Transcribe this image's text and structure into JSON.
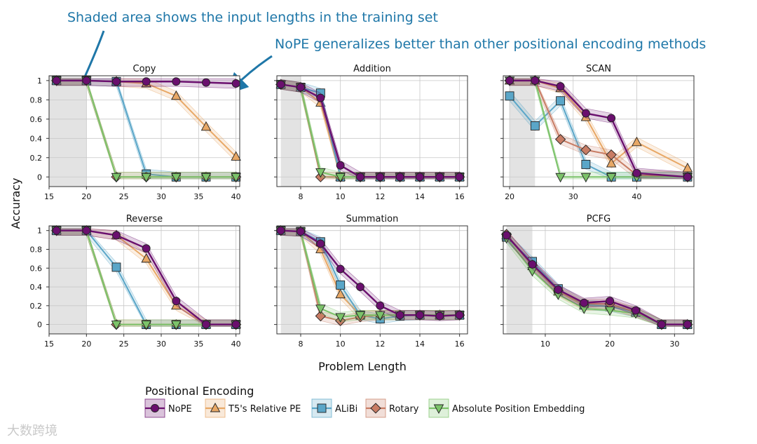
{
  "annotations": [
    "Shaded area shows the input lengths in the training set",
    "NoPE generalizes better than other positional encoding methods"
  ],
  "watermark": "大数跨境",
  "shared_xlabel": "Problem Length",
  "shared_ylabel": "Accuracy",
  "legend": {
    "title": "Positional Encoding",
    "entries": [
      {
        "label": "NoPE",
        "color": "#6a0f6e",
        "marker": "circle"
      },
      {
        "label": "T5's Relative PE",
        "color": "#e8a866",
        "marker": "triangle-up"
      },
      {
        "label": "ALiBi",
        "color": "#5aa6c8",
        "marker": "square"
      },
      {
        "label": "Rotary",
        "color": "#c87c64",
        "marker": "diamond"
      },
      {
        "label": "Absolute Position Embedding",
        "color": "#7cc36a",
        "marker": "triangle-down"
      }
    ]
  },
  "chart_data": [
    {
      "type": "line",
      "title": "Copy",
      "xlim": [
        15,
        40.5
      ],
      "xticks": [
        15,
        20,
        25,
        30,
        35,
        40
      ],
      "ylim": [
        -0.1,
        1.05
      ],
      "yticks": [
        0,
        0.2,
        0.4,
        0.6,
        0.8,
        1
      ],
      "ytick_labels": [
        "0",
        "0.2",
        "0.4",
        "0.6",
        "0.8",
        "1"
      ],
      "train_range": [
        15,
        20
      ],
      "series": [
        {
          "name": "NoPE",
          "x": [
            16,
            20,
            24,
            28,
            32,
            36,
            40
          ],
          "y": [
            1,
            1,
            0.99,
            0.99,
            0.99,
            0.98,
            0.97
          ]
        },
        {
          "name": "T5's Relative PE",
          "x": [
            16,
            20,
            24,
            28,
            32,
            36,
            40
          ],
          "y": [
            1,
            1,
            0.99,
            0.97,
            0.84,
            0.52,
            0.21
          ]
        },
        {
          "name": "ALiBi",
          "x": [
            16,
            20,
            24,
            28,
            32,
            36,
            40
          ],
          "y": [
            1,
            1,
            0.99,
            0.03,
            0,
            0,
            0
          ]
        },
        {
          "name": "Rotary",
          "x": [
            16,
            20,
            24,
            28,
            32,
            36,
            40
          ],
          "y": [
            1,
            1,
            0,
            0,
            0,
            0,
            0
          ]
        },
        {
          "name": "Absolute Position Embedding",
          "x": [
            16,
            20,
            24,
            28,
            32,
            36,
            40
          ],
          "y": [
            1,
            1,
            0,
            0,
            0,
            0,
            0
          ]
        }
      ]
    },
    {
      "type": "line",
      "title": "Addition",
      "xlim": [
        6.8,
        16.4
      ],
      "xticks": [
        8,
        10,
        12,
        14,
        16
      ],
      "ylim": [
        -0.1,
        1.05
      ],
      "yticks": [
        0,
        0.2,
        0.4,
        0.6,
        0.8,
        1
      ],
      "ytick_labels": [
        "",
        "",
        "",
        "",
        "",
        ""
      ],
      "train_range": [
        7,
        8
      ],
      "series": [
        {
          "name": "NoPE",
          "x": [
            7,
            8,
            9,
            10,
            11,
            12,
            13,
            14,
            15,
            16
          ],
          "y": [
            0.96,
            0.93,
            0.82,
            0.12,
            0,
            0,
            0,
            0,
            0,
            0
          ]
        },
        {
          "name": "T5's Relative PE",
          "x": [
            7,
            8,
            9,
            10,
            11,
            12,
            13,
            14,
            15,
            16
          ],
          "y": [
            0.96,
            0.93,
            0.77,
            0,
            0,
            0,
            0,
            0,
            0,
            0
          ]
        },
        {
          "name": "ALiBi",
          "x": [
            7,
            8,
            9,
            10,
            11,
            12,
            13,
            14,
            15,
            16
          ],
          "y": [
            0.96,
            0.93,
            0.87,
            0,
            0,
            0,
            0,
            0,
            0,
            0
          ]
        },
        {
          "name": "Rotary",
          "x": [
            7,
            8,
            9,
            10,
            11,
            12,
            13,
            14,
            15,
            16
          ],
          "y": [
            0.96,
            0.93,
            0,
            0,
            0,
            0,
            0,
            0,
            0,
            0
          ]
        },
        {
          "name": "Absolute Position Embedding",
          "x": [
            7,
            8,
            9,
            10,
            11,
            12,
            13,
            14,
            15,
            16
          ],
          "y": [
            0.96,
            0.93,
            0.05,
            0,
            0,
            0,
            0,
            0,
            0,
            0
          ]
        }
      ]
    },
    {
      "type": "line",
      "title": "SCAN",
      "xlim": [
        19,
        49
      ],
      "xticks": [
        20,
        30,
        40
      ],
      "ylim": [
        -0.1,
        1.05
      ],
      "yticks": [
        0,
        0.2,
        0.4,
        0.6,
        0.8,
        1
      ],
      "ytick_labels": [
        "",
        "",
        "",
        "",
        "",
        ""
      ],
      "train_range": [
        20,
        24
      ],
      "series": [
        {
          "name": "NoPE",
          "x": [
            20,
            24,
            28,
            32,
            36,
            40,
            48
          ],
          "y": [
            1,
            1,
            0.94,
            0.66,
            0.61,
            0.04,
            0
          ]
        },
        {
          "name": "T5's Relative PE",
          "x": [
            20,
            24,
            28,
            32,
            36,
            40,
            48
          ],
          "y": [
            1,
            1,
            0.92,
            0.62,
            0.14,
            0.36,
            0.09
          ]
        },
        {
          "name": "ALiBi",
          "x": [
            20,
            24,
            28,
            32,
            36,
            40,
            48
          ],
          "y": [
            0.84,
            0.53,
            0.79,
            0.13,
            0,
            0,
            0
          ]
        },
        {
          "name": "Rotary",
          "x": [
            20,
            24,
            28,
            32,
            36,
            40,
            48
          ],
          "y": [
            1,
            1,
            0.39,
            0.28,
            0.23,
            0.02,
            0
          ]
        },
        {
          "name": "Absolute Position Embedding",
          "x": [
            20,
            24,
            28,
            32,
            36,
            40,
            48
          ],
          "y": [
            1,
            1,
            0,
            0,
            0,
            0,
            0
          ]
        }
      ]
    },
    {
      "type": "line",
      "title": "Reverse",
      "xlim": [
        15,
        40.5
      ],
      "xticks": [
        15,
        20,
        25,
        30,
        35,
        40
      ],
      "ylim": [
        -0.1,
        1.05
      ],
      "yticks": [
        0,
        0.2,
        0.4,
        0.6,
        0.8,
        1
      ],
      "ytick_labels": [
        "0",
        "0.2",
        "0.4",
        "0.6",
        "0.8",
        "1"
      ],
      "train_range": [
        15,
        20
      ],
      "series": [
        {
          "name": "NoPE",
          "x": [
            16,
            20,
            24,
            28,
            32,
            36,
            40
          ],
          "y": [
            1,
            1,
            0.95,
            0.81,
            0.25,
            0,
            0
          ]
        },
        {
          "name": "T5's Relative PE",
          "x": [
            16,
            20,
            24,
            28,
            32,
            36,
            40
          ],
          "y": [
            1,
            1,
            0.95,
            0.7,
            0.2,
            0,
            0
          ]
        },
        {
          "name": "ALiBi",
          "x": [
            16,
            20,
            24,
            28,
            32,
            36,
            40
          ],
          "y": [
            1,
            1,
            0.61,
            0,
            0,
            0,
            0
          ]
        },
        {
          "name": "Rotary",
          "x": [
            16,
            20,
            24,
            28,
            32,
            36,
            40
          ],
          "y": [
            1,
            1,
            0,
            0,
            0,
            0,
            0
          ]
        },
        {
          "name": "Absolute Position Embedding",
          "x": [
            16,
            20,
            24,
            28,
            32,
            36,
            40
          ],
          "y": [
            1,
            1,
            0,
            0,
            0,
            0,
            0
          ]
        }
      ]
    },
    {
      "type": "line",
      "title": "Summation",
      "xlim": [
        6.8,
        16.4
      ],
      "xticks": [
        8,
        10,
        12,
        14,
        16
      ],
      "ylim": [
        -0.1,
        1.05
      ],
      "yticks": [
        0,
        0.2,
        0.4,
        0.6,
        0.8,
        1
      ],
      "ytick_labels": [
        "",
        "",
        "",
        "",
        "",
        ""
      ],
      "train_range": [
        7,
        8
      ],
      "series": [
        {
          "name": "NoPE",
          "x": [
            7,
            8,
            9,
            10,
            11,
            12,
            13,
            14,
            15,
            16
          ],
          "y": [
            1,
            0.99,
            0.86,
            0.59,
            0.4,
            0.2,
            0.1,
            0.1,
            0.09,
            0.1
          ]
        },
        {
          "name": "T5's Relative PE",
          "x": [
            7,
            8,
            9,
            10,
            11,
            12,
            13,
            14,
            15,
            16
          ],
          "y": [
            1,
            0.99,
            0.8,
            0.32,
            0.1,
            0.1,
            0.1,
            0.1,
            0.1,
            0.1
          ]
        },
        {
          "name": "ALiBi",
          "x": [
            7,
            8,
            9,
            10,
            11,
            12,
            13,
            14,
            15,
            16
          ],
          "y": [
            1,
            0.99,
            0.88,
            0.42,
            0.1,
            0.06,
            0.09,
            0.1,
            0.1,
            0.1
          ]
        },
        {
          "name": "Rotary",
          "x": [
            7,
            8,
            9,
            10,
            11,
            12,
            13,
            14,
            15,
            16
          ],
          "y": [
            1,
            0.99,
            0.09,
            0.04,
            0.08,
            0.1,
            0.1,
            0.1,
            0.1,
            0.1
          ]
        },
        {
          "name": "Absolute Position Embedding",
          "x": [
            7,
            8,
            9,
            10,
            11,
            12,
            13,
            14,
            15,
            16
          ],
          "y": [
            1,
            0.99,
            0.17,
            0.08,
            0.1,
            0.1,
            0.1,
            0.1,
            0.1,
            0.1
          ]
        }
      ]
    },
    {
      "type": "line",
      "title": "PCFG",
      "xlim": [
        3.5,
        33
      ],
      "xticks": [
        10,
        20,
        30
      ],
      "ylim": [
        -0.1,
        1.05
      ],
      "yticks": [
        0,
        0.2,
        0.4,
        0.6,
        0.8,
        1
      ],
      "ytick_labels": [
        "",
        "",
        "",
        "",
        "",
        ""
      ],
      "train_range": [
        4,
        8
      ],
      "series": [
        {
          "name": "NoPE",
          "x": [
            4,
            8,
            12,
            16,
            20,
            24,
            28,
            32
          ],
          "y": [
            0.95,
            0.64,
            0.37,
            0.23,
            0.25,
            0.15,
            0,
            0
          ]
        },
        {
          "name": "T5's Relative PE",
          "x": [
            4,
            8,
            12,
            16,
            20,
            24,
            28,
            32
          ],
          "y": [
            0.95,
            0.62,
            0.35,
            0.2,
            0.2,
            0.13,
            0,
            0
          ]
        },
        {
          "name": "ALiBi",
          "x": [
            4,
            8,
            12,
            16,
            20,
            24,
            28,
            32
          ],
          "y": [
            0.93,
            0.67,
            0.38,
            0.21,
            0.19,
            0.13,
            0,
            0
          ]
        },
        {
          "name": "Rotary",
          "x": [
            4,
            8,
            12,
            16,
            20,
            24,
            28,
            32
          ],
          "y": [
            0.96,
            0.63,
            0.36,
            0.22,
            0.22,
            0.13,
            0,
            0
          ]
        },
        {
          "name": "Absolute Position Embedding",
          "x": [
            4,
            8,
            12,
            16,
            20,
            24,
            28,
            32
          ],
          "y": [
            0.92,
            0.57,
            0.32,
            0.17,
            0.15,
            0.12,
            0,
            0
          ]
        }
      ]
    }
  ]
}
